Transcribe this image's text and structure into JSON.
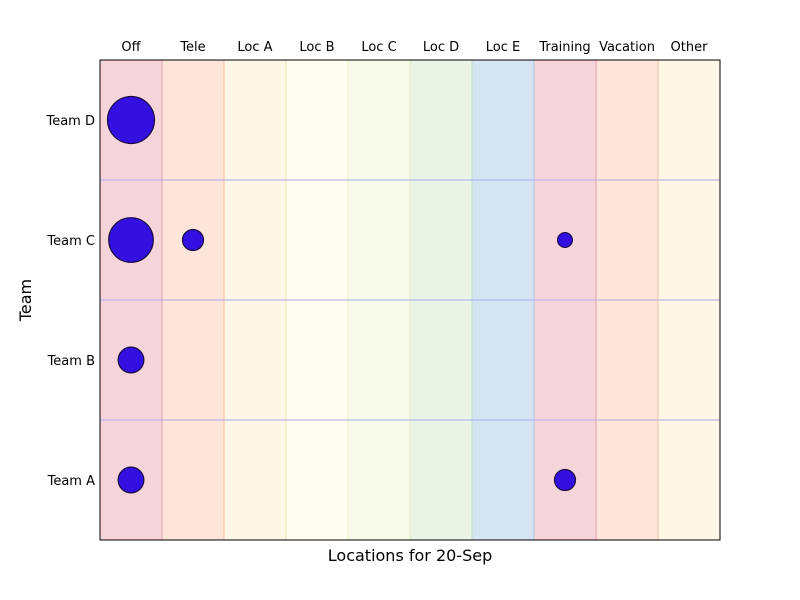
{
  "chart_data": {
    "type": "scatter",
    "subtype": "bubble-matrix",
    "xlabel": "Locations for 20-Sep",
    "ylabel": "Team",
    "x_categories": [
      "Off",
      "Tele",
      "Loc A",
      "Loc B",
      "Loc C",
      "Loc D",
      "Loc E",
      "Training",
      "Vacation",
      "Other"
    ],
    "y_categories": [
      "Team D",
      "Team C",
      "Team B",
      "Team A"
    ],
    "column_colors": [
      "#f5d5da",
      "#fde5da",
      "#fef6e6",
      "#fffef0",
      "#f8fbea",
      "#e9f4e7",
      "#d5e4f1",
      "#f5d5da",
      "#fde5da",
      "#fef6e6"
    ],
    "column_border_colors": [
      "#e3a2ad",
      "#f4c1ab",
      "#f5e1b5",
      "#f3f0c6",
      "#e2edc0",
      "#bfe0c3",
      "#a9c9e2",
      "#e3a2ad",
      "#f4c1ab",
      "#f5e1b5"
    ],
    "bubble_color": "#3410e0",
    "bubble_edge_color": "#1a0a40",
    "row_line_color": "#aaaaee",
    "points": [
      {
        "team": "Team D",
        "location": "Off",
        "value": 10
      },
      {
        "team": "Team C",
        "location": "Off",
        "value": 9
      },
      {
        "team": "Team C",
        "location": "Tele",
        "value": 2
      },
      {
        "team": "Team C",
        "location": "Training",
        "value": 1
      },
      {
        "team": "Team B",
        "location": "Off",
        "value": 3
      },
      {
        "team": "Team A",
        "location": "Off",
        "value": 3
      },
      {
        "team": "Team A",
        "location": "Training",
        "value": 2
      }
    ]
  }
}
